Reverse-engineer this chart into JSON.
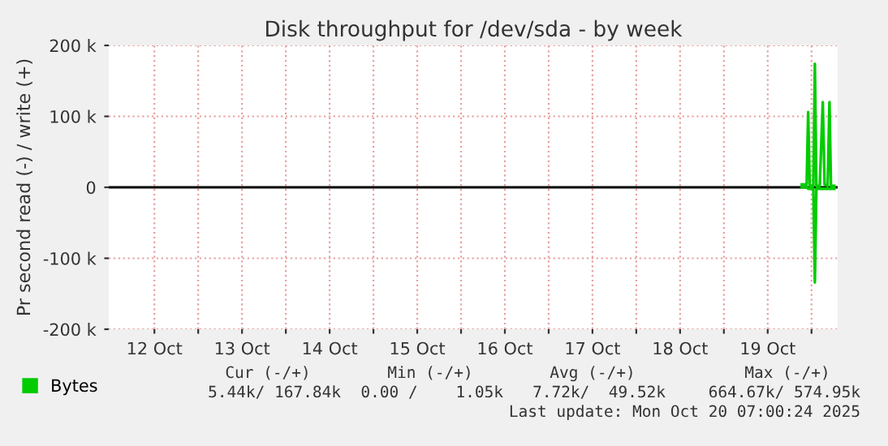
{
  "chart_data": {
    "type": "line",
    "title": "Disk throughput for /dev/sda - by week",
    "ylabel": "Pr second read (-) / write (+)",
    "x": [
      "2025-10-19T21:20",
      "2025-10-19T22:40",
      "2025-10-19T23:05",
      "2025-10-19T23:30",
      "2025-10-20T00:30",
      "2025-10-20T00:55",
      "2025-10-20T01:20",
      "2025-10-20T02:15",
      "2025-10-20T03:05",
      "2025-10-20T03:35",
      "2025-10-20T04:25",
      "2025-10-20T04:55",
      "2025-10-20T05:20",
      "2025-10-20T06:15"
    ],
    "series": [
      {
        "name": "Bytes",
        "color": "#00cc00",
        "values": [
          4000,
          4000,
          106000,
          2000,
          2000,
          174000,
          2000,
          2000,
          120000,
          4000,
          2000,
          120000,
          2000,
          2000
        ]
      },
      {
        "color": "#00cc00",
        "values": [
          0,
          0,
          -2000,
          -2000,
          -2000,
          -134000,
          -2000,
          -2000,
          -2000,
          -2000,
          -2000,
          -2000,
          -2000,
          -2000
        ]
      }
    ],
    "xlim": [
      "2025-10-11T23:30",
      "2025-10-20T07:10"
    ],
    "xticks": [
      {
        "value": "2025-10-12T12:00",
        "label": "12 Oct"
      },
      {
        "value": "2025-10-13",
        "label": null
      },
      {
        "value": "2025-10-13T12:00",
        "label": "13 Oct"
      },
      {
        "value": "2025-10-14",
        "label": null
      },
      {
        "value": "2025-10-14T12:00",
        "label": "14 Oct"
      },
      {
        "value": "2025-10-15",
        "label": null
      },
      {
        "value": "2025-10-15T12:00",
        "label": "15 Oct"
      },
      {
        "value": "2025-10-16",
        "label": null
      },
      {
        "value": "2025-10-16T12:00",
        "label": "16 Oct"
      },
      {
        "value": "2025-10-17",
        "label": null
      },
      {
        "value": "2025-10-17T12:00",
        "label": "17 Oct"
      },
      {
        "value": "2025-10-18",
        "label": null
      },
      {
        "value": "2025-10-18T12:00",
        "label": "18 Oct"
      },
      {
        "value": "2025-10-19",
        "label": null
      },
      {
        "value": "2025-10-19T12:00",
        "label": "19 Oct"
      },
      {
        "value": "2025-10-20",
        "label": null
      }
    ],
    "ylim": [
      -200000,
      200000
    ],
    "yticks": [
      {
        "value": -200000,
        "label": "-200 k"
      },
      {
        "value": -100000,
        "label": "-100 k"
      },
      {
        "value": 0,
        "label": "0"
      },
      {
        "value": 100000,
        "label": "100 k"
      },
      {
        "value": 200000,
        "label": "200 k"
      }
    ],
    "ref_lines": [
      {
        "axis": "y",
        "value": 0,
        "color": "#000000"
      }
    ],
    "grid": true,
    "legend": "bottom left",
    "annotations": [
      "Cur (-/+)",
      "Min (-/+)",
      "Avg (-/+)",
      "Max (-/+)",
      "5.44k/ 167.84k",
      "0.00 /    1.05k",
      "7.72k/  49.52k",
      "664.67k/ 574.95k",
      "Last update: Mon Oct 20 07:00:24 2025"
    ]
  }
}
